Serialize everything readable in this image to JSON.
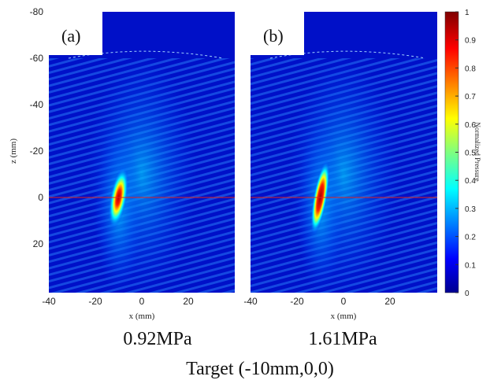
{
  "panels": [
    {
      "label": "(a)",
      "pressure": "0.92MPa"
    },
    {
      "label": "(b)",
      "pressure": "1.61MPa"
    }
  ],
  "y_axis": {
    "label": "z (mm)",
    "ticks": [
      -80,
      -60,
      -40,
      -20,
      0,
      20
    ]
  },
  "x_axis": {
    "label": "x (mm)",
    "ticks": [
      -40,
      -20,
      0,
      20
    ]
  },
  "colorbar": {
    "label": "Normalized Pressure",
    "ticks": [
      0,
      0.1,
      0.2,
      0.3,
      0.4,
      0.5,
      0.6,
      0.7,
      0.8,
      0.9,
      1
    ]
  },
  "caption": "Target (-10mm,0,0)"
}
